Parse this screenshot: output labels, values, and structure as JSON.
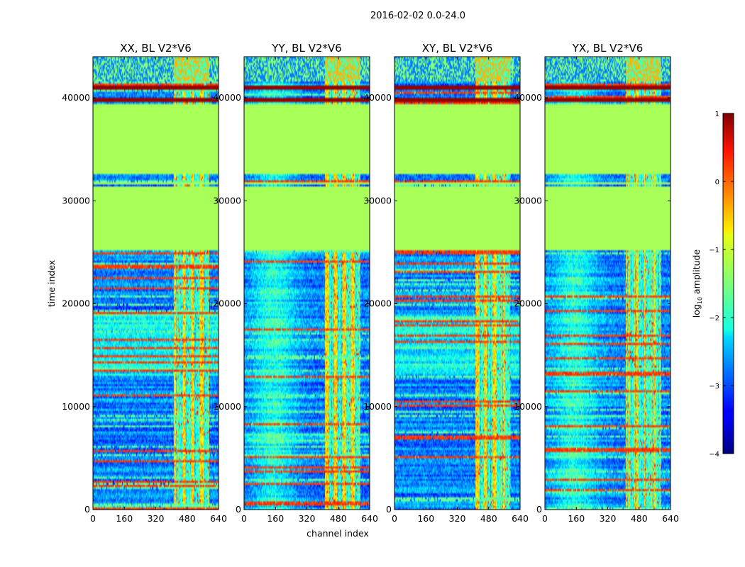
{
  "chart_data": {
    "type": "heatmap",
    "suptitle": "2016-02-02 0.0-24.0",
    "xlabel": "channel index",
    "ylabel": "time index",
    "xlim": [
      0,
      640
    ],
    "ylim": [
      0,
      44000
    ],
    "xticks": [
      0,
      160,
      320,
      480,
      640
    ],
    "yticks": [
      0,
      10000,
      20000,
      30000,
      40000
    ],
    "panels": [
      {
        "title": "XX, BL V2*V6",
        "pattern": "XX"
      },
      {
        "title": "YY, BL V2*V6",
        "pattern": "YY"
      },
      {
        "title": "XY, BL V2*V6",
        "pattern": "XY"
      },
      {
        "title": "YX, BL V2*V6",
        "pattern": "YX"
      }
    ],
    "flagged_time_ranges": [
      [
        25300,
        31300
      ],
      [
        31600,
        31800
      ],
      [
        32600,
        39400
      ]
    ],
    "flagged_fill_value": -1.3,
    "bright_channel_range": [
      410,
      590
    ],
    "strong_rfi_rows": [
      39800,
      41000,
      41200,
      40100
    ],
    "colorbar": {
      "label": "log10 amplitude",
      "ticks": [
        1,
        0,
        -1,
        -2,
        -3,
        -4
      ],
      "tick_labels": [
        "1",
        "0",
        "−1",
        "−2",
        "−3",
        "−4"
      ],
      "vmin": -4,
      "vmax": 1,
      "colormap": "jet"
    }
  }
}
